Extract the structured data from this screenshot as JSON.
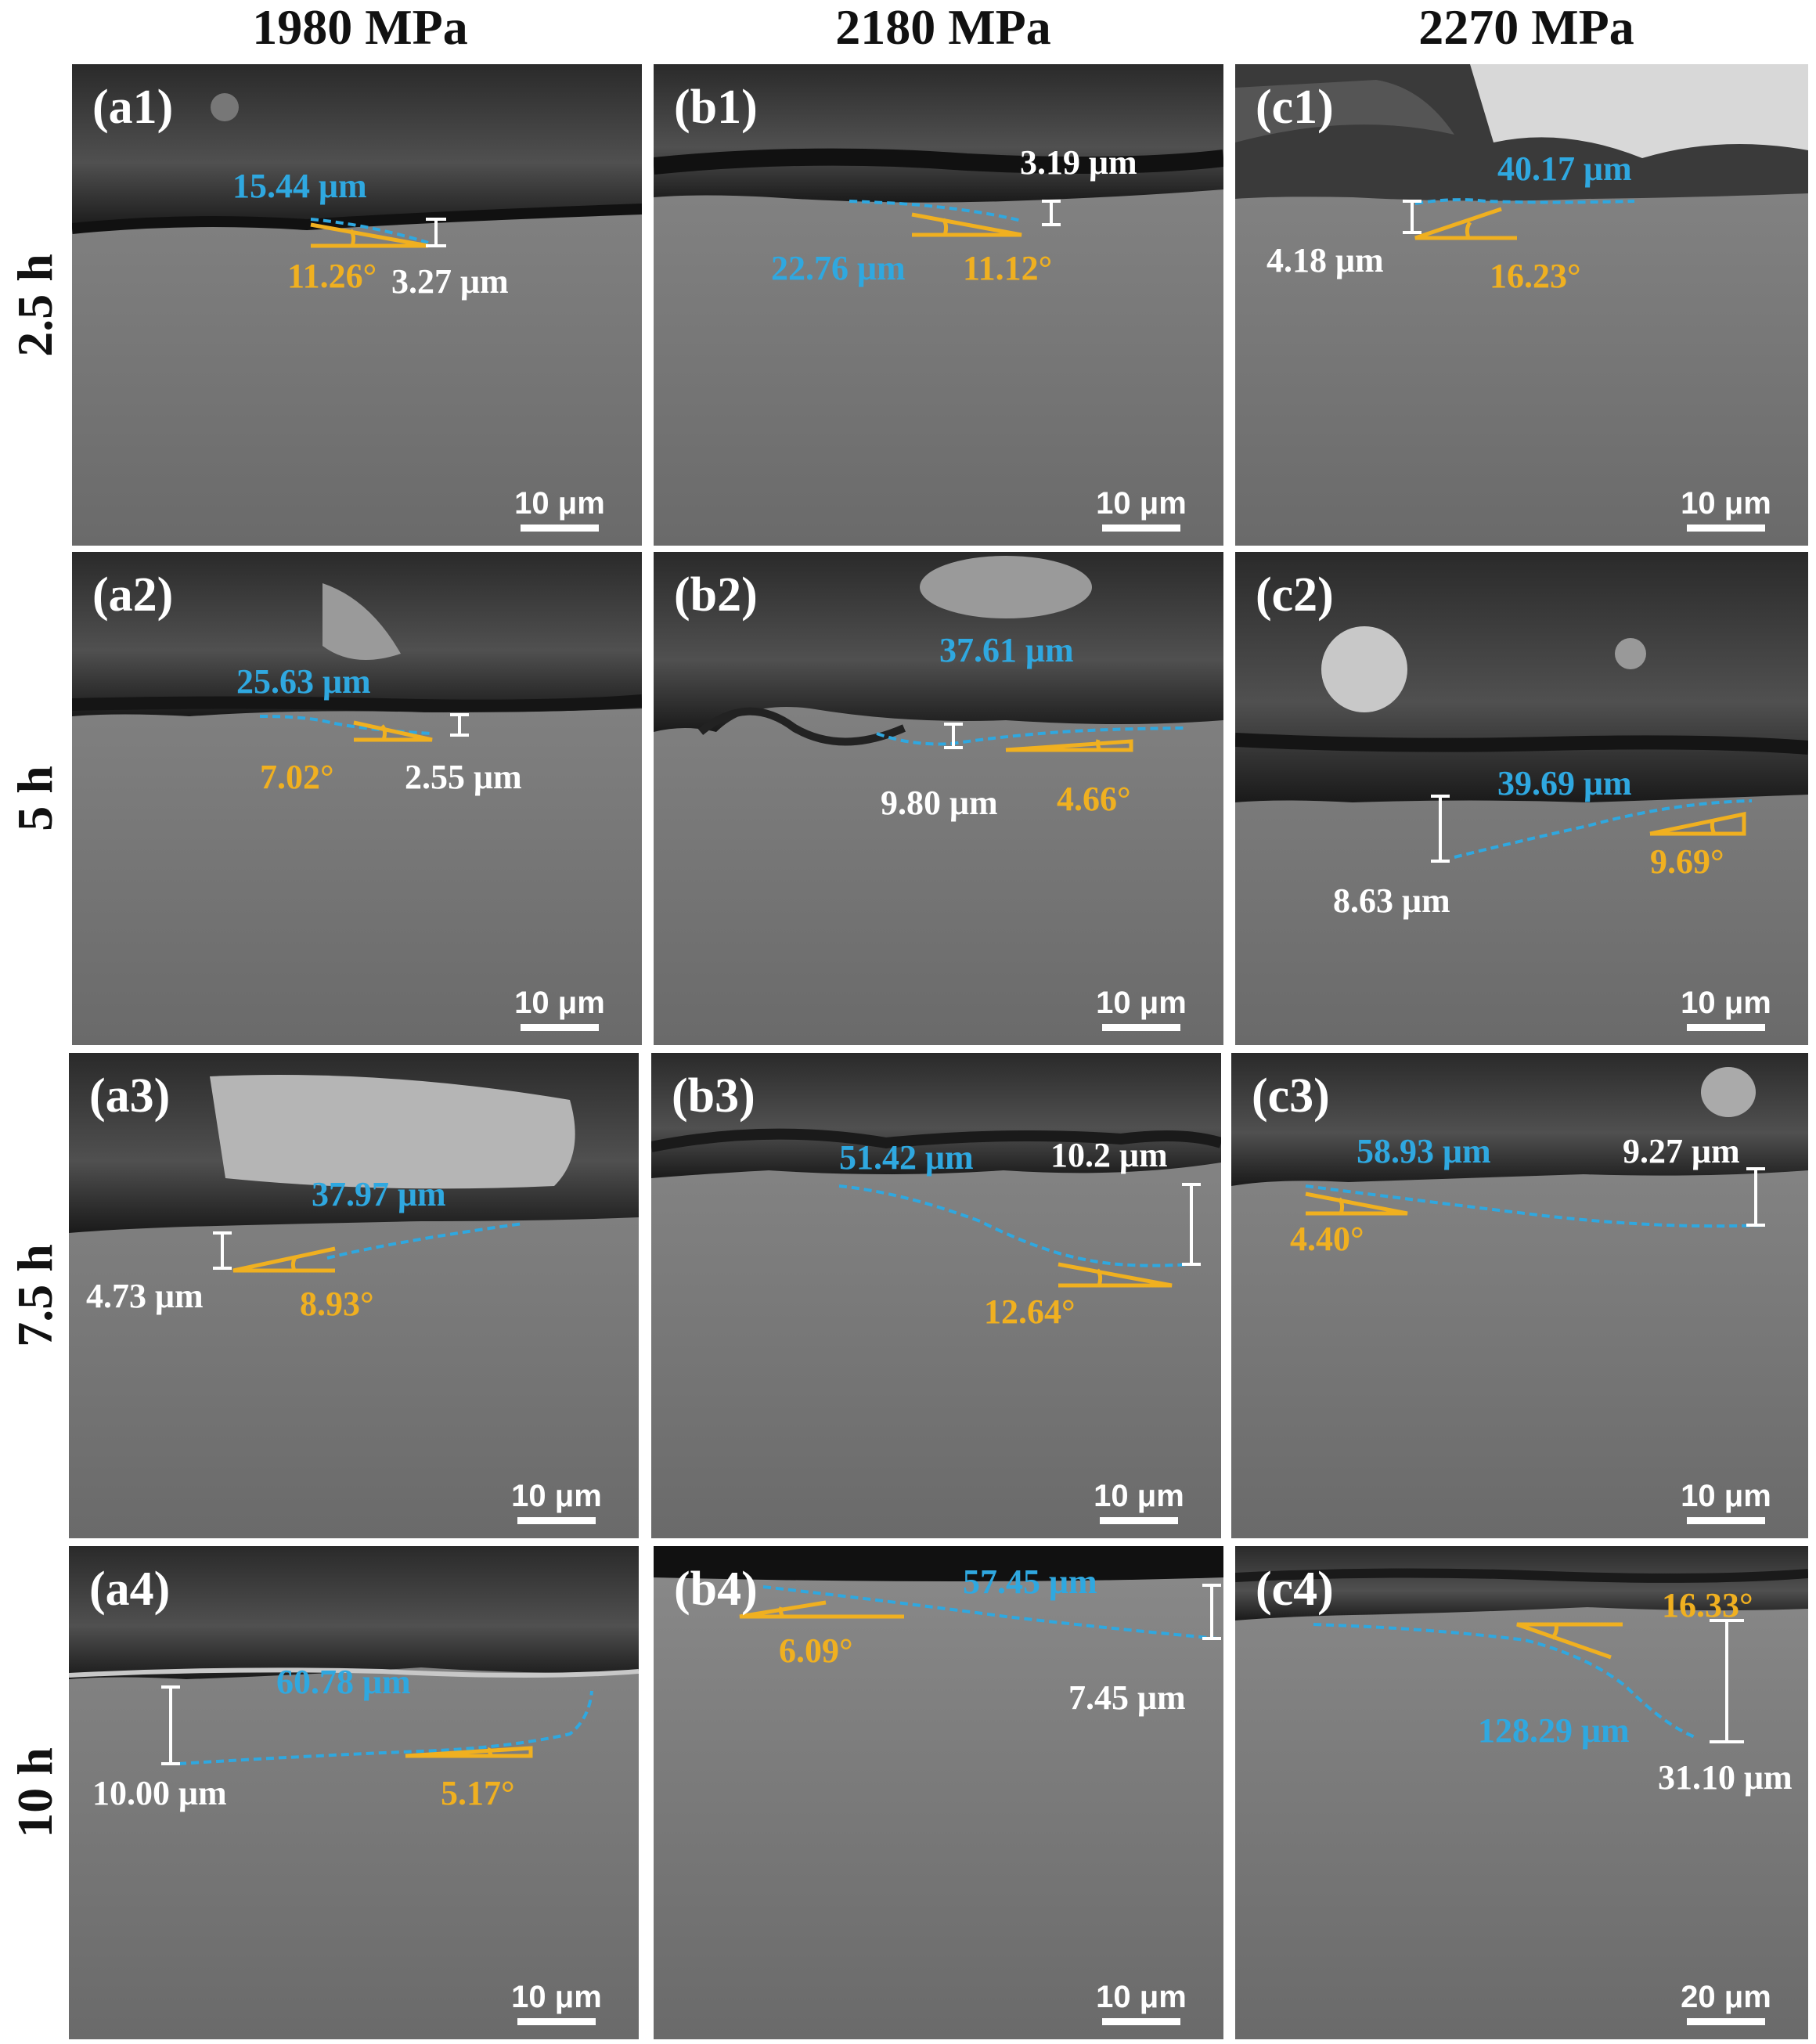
{
  "columns": [
    "1980 MPa",
    "2180 MPa",
    "2270 MPa"
  ],
  "rows": [
    "2.5 h",
    "5 h",
    "7.5 h",
    "10 h"
  ],
  "panels": {
    "a1": {
      "label": "(a1)",
      "length": "15.44 μm",
      "angle": "11.26°",
      "depth": "3.27 μm",
      "scale": "10 μm"
    },
    "b1": {
      "label": "(b1)",
      "length": "22.76 μm",
      "angle": "11.12°",
      "depth": "3.19 μm",
      "scale": "10 μm"
    },
    "c1": {
      "label": "(c1)",
      "length": "40.17 μm",
      "angle": "16.23°",
      "depth": "4.18 μm",
      "scale": "10 μm"
    },
    "a2": {
      "label": "(a2)",
      "length": "25.63 μm",
      "angle": "7.02°",
      "depth": "2.55 μm",
      "scale": "10 μm"
    },
    "b2": {
      "label": "(b2)",
      "length": "37.61 μm",
      "angle": "4.66°",
      "depth": "9.80 μm",
      "scale": "10 μm"
    },
    "c2": {
      "label": "(c2)",
      "length": "39.69 μm",
      "angle": "9.69°",
      "depth": "8.63 μm",
      "scale": "10 μm"
    },
    "a3": {
      "label": "(a3)",
      "length": "37.97 μm",
      "angle": "8.93°",
      "depth": "4.73 μm",
      "scale": "10 μm"
    },
    "b3": {
      "label": "(b3)",
      "length": "51.42 μm",
      "angle": "12.64°",
      "depth": "10.2 μm",
      "scale": "10 μm"
    },
    "c3": {
      "label": "(c3)",
      "length": "58.93 μm",
      "angle": "4.40°",
      "depth": "9.27 μm",
      "scale": "10 μm"
    },
    "a4": {
      "label": "(a4)",
      "length": "60.78 μm",
      "angle": "5.17°",
      "depth": "10.00 μm",
      "scale": "10 μm"
    },
    "b4": {
      "label": "(b4)",
      "length": "57.45 μm",
      "angle": "6.09°",
      "depth": "7.45 μm",
      "scale": "10 μm"
    },
    "c4": {
      "label": "(c4)",
      "length": "128.29 μm",
      "angle": "16.33°",
      "depth": "31.10 μm",
      "scale": "20 μm"
    }
  },
  "colors": {
    "length": "#2fa8e0",
    "angle": "#f0b020",
    "depth": "#ffffff"
  }
}
